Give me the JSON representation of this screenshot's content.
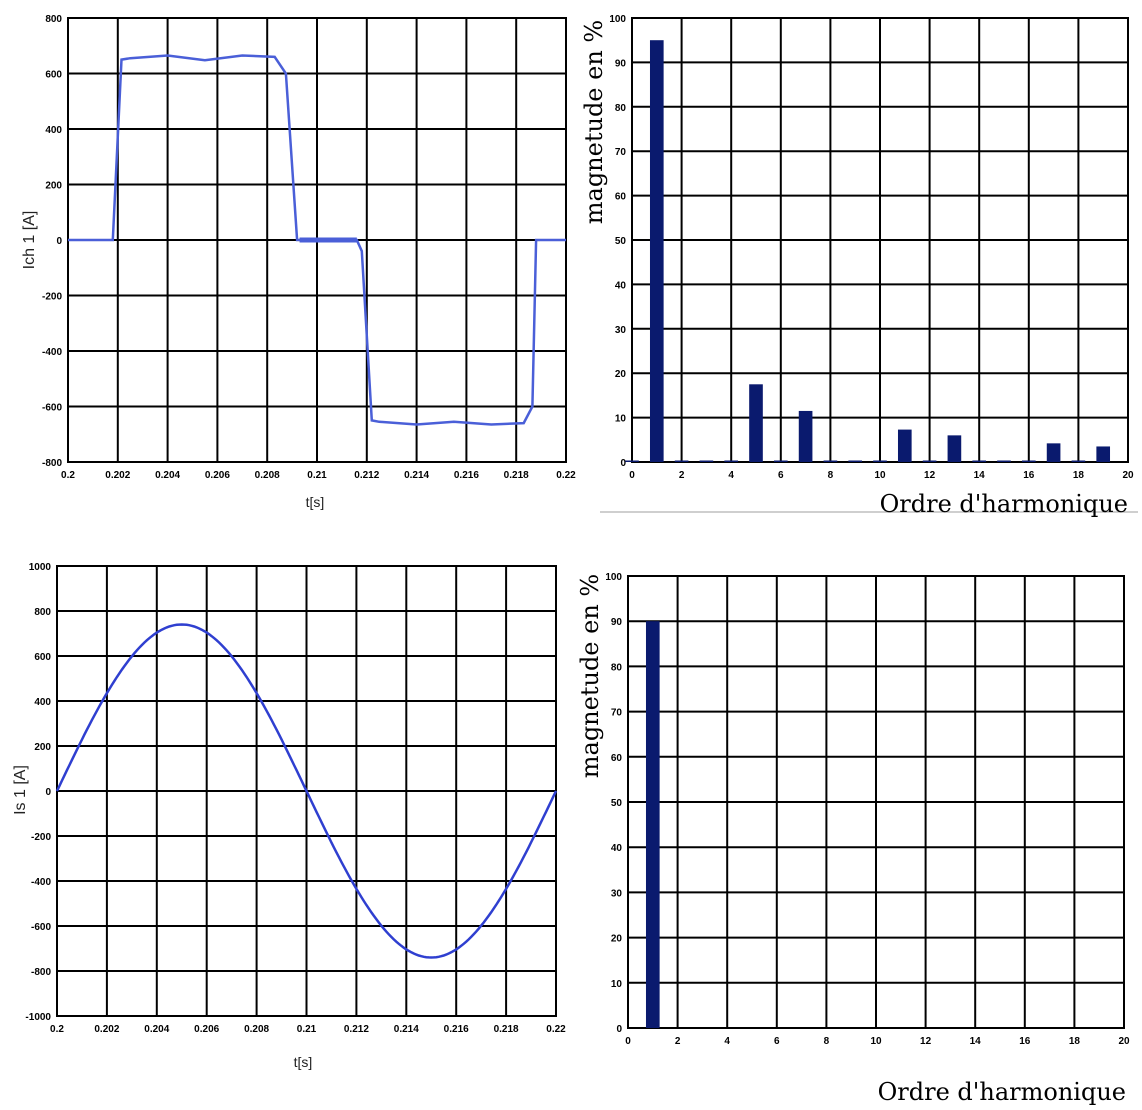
{
  "chart_data": [
    {
      "type": "line",
      "id": "ich1",
      "ylabel": "Ich 1 [A]",
      "xlabel": "t[s]",
      "xlim": [
        0.2,
        0.22
      ],
      "ylim": [
        -800,
        800
      ],
      "xticks": [
        0.2,
        0.202,
        0.204,
        0.206,
        0.208,
        0.21,
        0.212,
        0.214,
        0.216,
        0.218,
        0.22
      ],
      "xtick_labels": [
        "0.2",
        "0.202",
        "0.204",
        "0.206",
        "0.208",
        "0.21",
        "0.212",
        "0.214",
        "0.216",
        "0.218",
        "0.22"
      ],
      "yticks": [
        -800,
        -600,
        -400,
        -200,
        0,
        200,
        400,
        600,
        800
      ],
      "ytick_labels": [
        "-800",
        "-600",
        "-400",
        "-200",
        "0",
        "200",
        "400",
        "600",
        "800"
      ],
      "grid": true,
      "color": "#4a5fd8",
      "series": [
        {
          "x": [
            0.2,
            0.2018,
            0.20215,
            0.2025,
            0.204,
            0.2055,
            0.207,
            0.2083,
            0.20875,
            0.2092,
            0.2093,
            0.21,
            0.2116,
            0.2118,
            0.2122,
            0.2125,
            0.214,
            0.2155,
            0.217,
            0.2183,
            0.21865,
            0.2188,
            0.22
          ],
          "y": [
            0,
            0,
            650,
            655,
            665,
            648,
            665,
            660,
            600,
            0,
            0,
            0,
            0,
            -40,
            -650,
            -655,
            -665,
            -655,
            -665,
            -660,
            -600,
            0,
            0
          ]
        }
      ]
    },
    {
      "type": "bar",
      "id": "ich1-spectrum",
      "ylabel": "magnetude en %",
      "xlabel": "Ordre d'harmonique",
      "xlim": [
        0,
        20
      ],
      "ylim": [
        0,
        100
      ],
      "xticks": [
        0,
        2,
        4,
        6,
        8,
        10,
        12,
        14,
        16,
        18,
        20
      ],
      "xtick_labels": [
        "0",
        "2",
        "4",
        "6",
        "8",
        "10",
        "12",
        "14",
        "16",
        "18",
        "20"
      ],
      "yticks": [
        0,
        10,
        20,
        30,
        40,
        50,
        60,
        70,
        80,
        90,
        100
      ],
      "ytick_labels": [
        "0",
        "10",
        "20",
        "30",
        "40",
        "50",
        "60",
        "70",
        "80",
        "90",
        "100"
      ],
      "grid": true,
      "color": "#0a1a6e",
      "categories": [
        0,
        1,
        2,
        3,
        4,
        5,
        6,
        7,
        8,
        9,
        10,
        11,
        12,
        13,
        14,
        15,
        16,
        17,
        18,
        19
      ],
      "values": [
        0.3,
        95,
        0.3,
        0.3,
        0.3,
        17.5,
        0.3,
        11.5,
        0.3,
        0.3,
        0.3,
        7.3,
        0.3,
        6,
        0.3,
        0.3,
        0.3,
        4.2,
        0.3,
        3.5
      ]
    },
    {
      "type": "line",
      "id": "is1",
      "ylabel": "Is 1 [A]",
      "xlabel": "t[s]",
      "xlim": [
        0.2,
        0.22
      ],
      "ylim": [
        -1000,
        1000
      ],
      "xticks": [
        0.2,
        0.202,
        0.204,
        0.206,
        0.208,
        0.21,
        0.212,
        0.214,
        0.216,
        0.218,
        0.22
      ],
      "xtick_labels": [
        "0.2",
        "0.202",
        "0.204",
        "0.206",
        "0.208",
        "0.21",
        "0.212",
        "0.214",
        "0.216",
        "0.218",
        "0.22"
      ],
      "yticks": [
        -1000,
        -800,
        -600,
        -400,
        -200,
        0,
        200,
        400,
        600,
        800,
        1000
      ],
      "ytick_labels": [
        "-1000",
        "-800",
        "-600",
        "-400",
        "-200",
        "0",
        "200",
        "400",
        "600",
        "800",
        "1000"
      ],
      "grid": true,
      "color": "#2f3fd0",
      "amplitude": 740,
      "period": 0.02,
      "start": 0.2
    },
    {
      "type": "bar",
      "id": "is1-spectrum",
      "ylabel": "magnetude en %",
      "xlabel": "Ordre d'harmonique",
      "xlim": [
        0,
        20
      ],
      "ylim": [
        0,
        100
      ],
      "xticks": [
        0,
        2,
        4,
        6,
        8,
        10,
        12,
        14,
        16,
        18,
        20
      ],
      "xtick_labels": [
        "0",
        "2",
        "4",
        "6",
        "8",
        "10",
        "12",
        "14",
        "16",
        "18",
        "20"
      ],
      "yticks": [
        0,
        10,
        20,
        30,
        40,
        50,
        60,
        70,
        80,
        90,
        100
      ],
      "ytick_labels": [
        "0",
        "10",
        "20",
        "30",
        "40",
        "50",
        "60",
        "70",
        "80",
        "90",
        "100"
      ],
      "grid": true,
      "color": "#0a1a6e",
      "categories": [
        1
      ],
      "values": [
        90
      ]
    }
  ]
}
